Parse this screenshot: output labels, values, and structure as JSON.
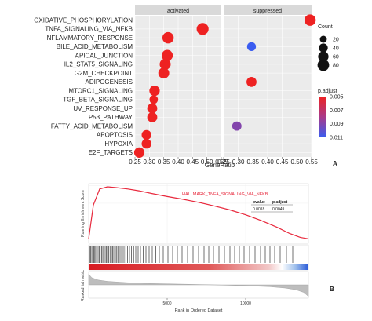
{
  "chart_data": [
    {
      "type": "scatter",
      "panel_letter": "A",
      "facets": [
        "activated",
        "suppressed"
      ],
      "xlabel": "GeneRatio",
      "ylabel": "",
      "xlim": [
        0.25,
        0.55
      ],
      "x_ticks": [
        0.25,
        0.3,
        0.35,
        0.4,
        0.45,
        0.5,
        0.55
      ],
      "x_tick_labels": [
        "0.25",
        "0.30",
        "0.35",
        "0.40",
        "0.45",
        "0.50",
        "0.55"
      ],
      "grid": true,
      "legend_position": "right",
      "categories": [
        "OXIDATIVE_PHOSPHORYLATION",
        "TNFA_SIGNALING_VIA_NFKB",
        "INFLAMMATORY_RESPONSE",
        "BILE_ACID_METABOLISM",
        "APICAL_JUNCTION",
        "IL2_STAT5_SIGNALING",
        "G2M_CHECKPOINT",
        "ADIPOGENESIS",
        "MTORC1_SIGNALING",
        "TGF_BETA_SIGNALING",
        "UV_RESPONSE_UP",
        "P53_PATHWAY",
        "FATTY_ACID_METABOLISM",
        "APOPTOSIS",
        "HYPOXIA",
        "E2F_TARGETS"
      ],
      "points": [
        {
          "facet": "activated",
          "term": "TNFA_SIGNALING_VIA_NFKB",
          "x": 0.485,
          "count": 85,
          "p_adjust": 0.005
        },
        {
          "facet": "activated",
          "term": "INFLAMMATORY_RESPONSE",
          "x": 0.365,
          "count": 75,
          "p_adjust": 0.005
        },
        {
          "facet": "activated",
          "term": "APICAL_JUNCTION",
          "x": 0.362,
          "count": 72,
          "p_adjust": 0.005
        },
        {
          "facet": "activated",
          "term": "IL2_STAT5_SIGNALING",
          "x": 0.355,
          "count": 70,
          "p_adjust": 0.005
        },
        {
          "facet": "activated",
          "term": "G2M_CHECKPOINT",
          "x": 0.35,
          "count": 68,
          "p_adjust": 0.005
        },
        {
          "facet": "activated",
          "term": "MTORC1_SIGNALING",
          "x": 0.318,
          "count": 60,
          "p_adjust": 0.005
        },
        {
          "facet": "activated",
          "term": "TGF_BETA_SIGNALING",
          "x": 0.315,
          "count": 35,
          "p_adjust": 0.005
        },
        {
          "facet": "activated",
          "term": "UV_RESPONSE_UP",
          "x": 0.31,
          "count": 55,
          "p_adjust": 0.005
        },
        {
          "facet": "activated",
          "term": "P53_PATHWAY",
          "x": 0.31,
          "count": 55,
          "p_adjust": 0.005
        },
        {
          "facet": "activated",
          "term": "APOPTOSIS",
          "x": 0.29,
          "count": 50,
          "p_adjust": 0.005
        },
        {
          "facet": "activated",
          "term": "HYPOXIA",
          "x": 0.29,
          "count": 50,
          "p_adjust": 0.005
        },
        {
          "facet": "activated",
          "term": "E2F_TARGETS",
          "x": 0.265,
          "count": 60,
          "p_adjust": 0.005
        },
        {
          "facet": "suppressed",
          "term": "OXIDATIVE_PHOSPHORYLATION",
          "x": 0.545,
          "count": 75,
          "p_adjust": 0.005
        },
        {
          "facet": "suppressed",
          "term": "BILE_ACID_METABOLISM",
          "x": 0.345,
          "count": 40,
          "p_adjust": 0.011
        },
        {
          "facet": "suppressed",
          "term": "ADIPOGENESIS",
          "x": 0.345,
          "count": 55,
          "p_adjust": 0.005
        },
        {
          "facet": "suppressed",
          "term": "FATTY_ACID_METABOLISM",
          "x": 0.295,
          "count": 45,
          "p_adjust": 0.009
        }
      ],
      "legend_size": {
        "title": "Count",
        "values": [
          20,
          40,
          60,
          80
        ],
        "labels": [
          "20",
          "40",
          "60",
          "80"
        ]
      },
      "legend_color": {
        "title": "p.adjust",
        "values": [
          0.005,
          0.007,
          0.009,
          0.011
        ],
        "labels": [
          "0.005",
          "0.007",
          "0.009",
          "0.011"
        ],
        "range": [
          0.005,
          0.011
        ],
        "low_color": "#ee2222",
        "high_color": "#3a5cf0"
      }
    },
    {
      "type": "line",
      "panel_letter": "B",
      "title": "HALLMARK_TNFA_SIGNALING_VIA_NFKB",
      "ylabel": "Running Enrichment Score",
      "xlabel": "Rank in Ordered Dataset",
      "ylabel_bottom": "Ranked list metric",
      "series_color": "#e8283c",
      "stats_table": {
        "headers": [
          "pvalue",
          "p.adjust"
        ],
        "values": [
          "0.0018",
          "0.0049"
        ]
      },
      "x": [
        0,
        300,
        700,
        1200,
        1800,
        2500,
        3200,
        4000,
        5000,
        6000,
        7000,
        8000,
        9000,
        10000,
        11000,
        12000,
        12800,
        13500,
        14000
      ],
      "values": [
        0.0,
        0.38,
        0.56,
        0.585,
        0.575,
        0.56,
        0.54,
        0.51,
        0.475,
        0.445,
        0.41,
        0.37,
        0.325,
        0.27,
        0.205,
        0.13,
        0.06,
        0.015,
        0.0
      ],
      "xlim": [
        0,
        14000
      ],
      "ylim": [
        -0.05,
        0.62
      ],
      "x_ticks": [
        5000,
        10000
      ],
      "x_tick_labels": [
        "5000",
        "10000"
      ],
      "hit_ranks": [
        60,
        130,
        200,
        260,
        330,
        390,
        450,
        520,
        600,
        680,
        740,
        820,
        900,
        960,
        1050,
        1120,
        1200,
        1280,
        1360,
        1450,
        1520,
        1600,
        1700,
        1790,
        1860,
        1950,
        2050,
        2150,
        2250,
        2360,
        2480,
        2600,
        2720,
        2860,
        3000,
        3150,
        3300,
        3480,
        3650,
        3850,
        4050,
        4280,
        4500,
        4750,
        5050,
        5350,
        5650,
        5950,
        6300,
        6650,
        7000,
        7350,
        7650,
        7950,
        8300,
        8650,
        9000,
        9300,
        9600,
        9900,
        10250,
        10600,
        10950,
        11250,
        11550,
        11850,
        12200,
        12600,
        13000
      ],
      "metric_x": [
        0,
        200,
        600,
        1200,
        2500,
        4000,
        6000,
        8000,
        10000,
        11500,
        12500,
        13200,
        13700,
        14000
      ],
      "metric_values": [
        2.4,
        1.6,
        1.1,
        0.8,
        0.5,
        0.3,
        0.15,
        0.0,
        -0.2,
        -0.4,
        -0.7,
        -1.1,
        -1.7,
        -2.6
      ],
      "metric_ylim": [
        -3,
        3
      ]
    }
  ]
}
